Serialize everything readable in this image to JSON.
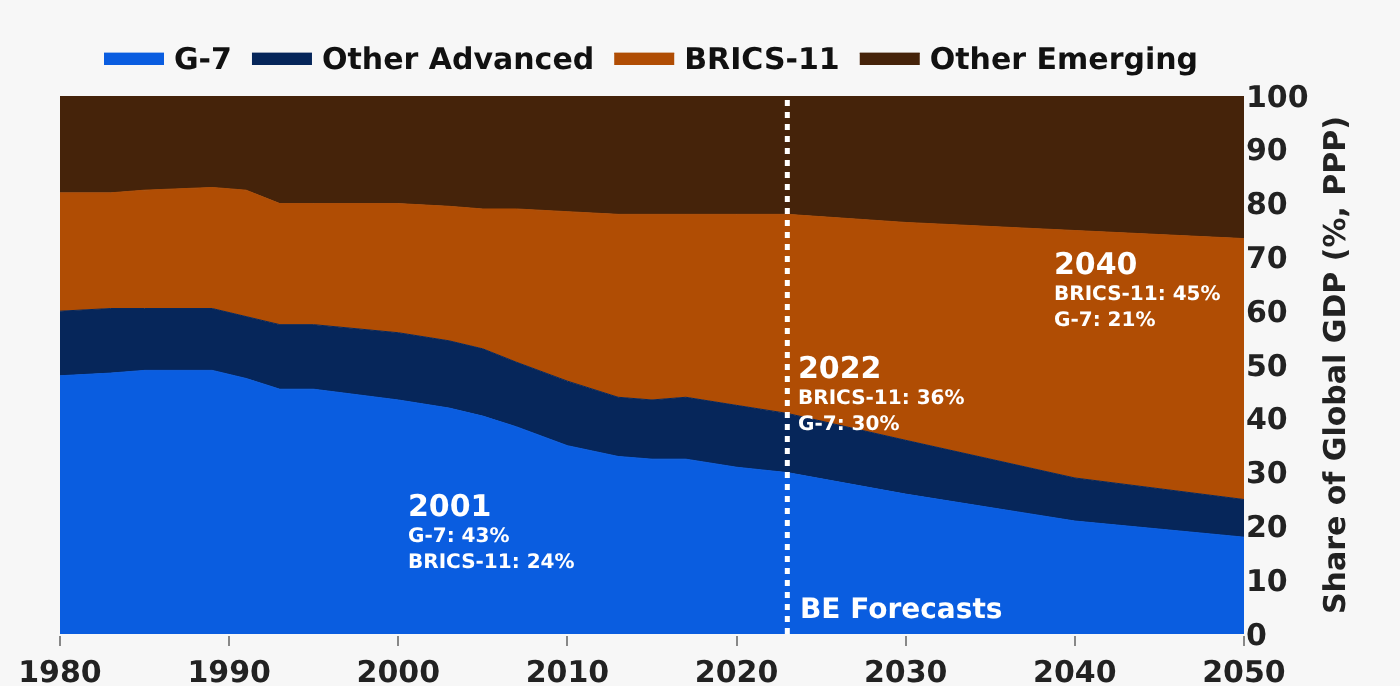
{
  "chart_data": {
    "type": "area",
    "stacked": true,
    "ylabel": "Share of Global GDP (%, PPP)",
    "x": [
      1980,
      1983,
      1985,
      1989,
      1991,
      1993,
      1995,
      2000,
      2003,
      2005,
      2007,
      2010,
      2013,
      2015,
      2017,
      2020,
      2023,
      2030,
      2040,
      2050
    ],
    "series": [
      {
        "name": "G-7",
        "color": "#0a5de0",
        "values": [
          48,
          48.5,
          49,
          49,
          47.5,
          45.5,
          45.5,
          43.5,
          42,
          40.5,
          38.5,
          35,
          33,
          32.5,
          32.5,
          31,
          30,
          26,
          21,
          18
        ]
      },
      {
        "name": "Other Advanced",
        "color": "#06265a",
        "values": [
          12,
          12,
          11.5,
          11.5,
          11.5,
          12,
          12,
          12.5,
          12.5,
          12.5,
          12,
          12,
          11,
          11,
          11.5,
          11.5,
          11,
          10,
          8,
          7
        ]
      },
      {
        "name": "BRICS-11",
        "color": "#b04d04",
        "values": [
          22,
          21.5,
          22,
          22.5,
          23.5,
          22.5,
          22.5,
          24,
          25,
          26,
          28.5,
          31.5,
          34,
          34.5,
          34,
          35.5,
          37,
          40.5,
          46,
          48.5
        ]
      },
      {
        "name": "Other Emerging",
        "color": "#45230a",
        "values": [
          18,
          18,
          17.5,
          17,
          17.5,
          20,
          20,
          20,
          20.5,
          21,
          21,
          21.5,
          22,
          22,
          22,
          22,
          22,
          23.5,
          25,
          26.5
        ]
      }
    ],
    "xlim": [
      1980,
      2050
    ],
    "xticks": [
      1980,
      1990,
      2000,
      2010,
      2020,
      2030,
      2040,
      2050
    ],
    "ylim": [
      0,
      100
    ],
    "yticks": [
      0,
      10,
      20,
      30,
      40,
      50,
      60,
      70,
      80,
      90,
      100
    ],
    "ref_lines": [
      {
        "axis": "x",
        "value": 2023,
        "label": "BE Forecasts",
        "color": "#ffffff",
        "line_style": "dotted"
      }
    ],
    "annotations": [
      "2001\nG-7: 43%\nBRICS-11: 24%",
      "2022\nBRICS-11: 36%\nG-7: 30%",
      "2040\nBRICS-11: 45%\nG-7: 21%"
    ],
    "legend": "top",
    "marker": "none",
    "line_style": "solid"
  }
}
